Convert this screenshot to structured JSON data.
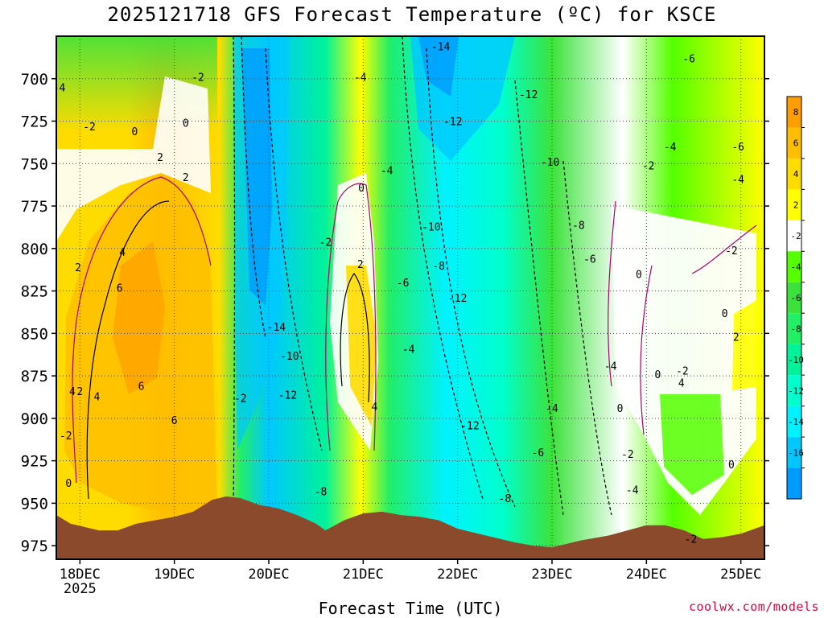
{
  "chart_data": {
    "type": "heatmap",
    "title": "2025121718 GFS Forecast Temperature (ºC) for KSCE",
    "xlabel": "Forecast Time (UTC)",
    "ylabel": "",
    "y_axis": {
      "ticks": [
        700,
        725,
        750,
        775,
        800,
        825,
        850,
        875,
        900,
        925,
        950,
        975
      ],
      "range": [
        675,
        983
      ],
      "inverted": true
    },
    "x_axis": {
      "ticks": [
        "18DEC",
        "19DEC",
        "20DEC",
        "21DEC",
        "22DEC",
        "23DEC",
        "24DEC",
        "25DEC"
      ],
      "tick_values": [
        1.0,
        2.0,
        3.0,
        4.0,
        5.0,
        6.0,
        7.0,
        8.0
      ],
      "year_label": "2025",
      "range": [
        0.75,
        8.25
      ]
    },
    "colorbar": {
      "labels": [
        "8",
        "6",
        "4",
        "2",
        "-2",
        "-4",
        "-6",
        "-8",
        "-10",
        "-12",
        "-14",
        "-16"
      ],
      "colors": [
        "#ff9e00",
        "#ffbe00",
        "#ffdc00",
        "#ffff00",
        "#ffffff",
        "#55ff00",
        "#3ce23c",
        "#22ee66",
        "#00f29a",
        "#00ffcc",
        "#00f2ff",
        "#00c8ff",
        "#009bff"
      ]
    },
    "grid": true,
    "contour_labels": [
      {
        "t": 0.78,
        "p": 705,
        "v": "-4"
      },
      {
        "t": 1.1,
        "p": 728,
        "v": "-2"
      },
      {
        "t": 1.58,
        "p": 731,
        "v": "0"
      },
      {
        "t": 1.85,
        "p": 746,
        "v": "2"
      },
      {
        "t": 2.25,
        "p": 699,
        "v": "-2"
      },
      {
        "t": 2.12,
        "p": 726,
        "v": "0"
      },
      {
        "t": 2.12,
        "p": 758,
        "v": "2"
      },
      {
        "t": 0.98,
        "p": 811,
        "v": "2"
      },
      {
        "t": 1.45,
        "p": 802,
        "v": "4"
      },
      {
        "t": 1.42,
        "p": 823,
        "v": "6"
      },
      {
        "t": 1.65,
        "p": 881,
        "v": "6"
      },
      {
        "t": 2.0,
        "p": 901,
        "v": "6"
      },
      {
        "t": 0.92,
        "p": 884,
        "v": "4"
      },
      {
        "t": 1.0,
        "p": 884,
        "v": "2"
      },
      {
        "t": 1.18,
        "p": 887,
        "v": "4"
      },
      {
        "t": 0.85,
        "p": 910,
        "v": "-2"
      },
      {
        "t": 0.88,
        "p": 938,
        "v": "0"
      },
      {
        "t": 2.7,
        "p": 888,
        "v": "-2"
      },
      {
        "t": 3.08,
        "p": 846,
        "v": "-14"
      },
      {
        "t": 3.22,
        "p": 863,
        "v": "-10"
      },
      {
        "t": 3.2,
        "p": 886,
        "v": "-12"
      },
      {
        "t": 3.55,
        "p": 943,
        "v": "-8"
      },
      {
        "t": 3.6,
        "p": 796,
        "v": "-2"
      },
      {
        "t": 3.98,
        "p": 764,
        "v": "0"
      },
      {
        "t": 3.97,
        "p": 809,
        "v": "2"
      },
      {
        "t": 4.12,
        "p": 893,
        "v": "4"
      },
      {
        "t": 4.25,
        "p": 754,
        "v": "-4"
      },
      {
        "t": 3.97,
        "p": 699,
        "v": "-4"
      },
      {
        "t": 4.42,
        "p": 820,
        "v": "-6"
      },
      {
        "t": 4.48,
        "p": 859,
        "v": "-4"
      },
      {
        "t": 4.72,
        "p": 787,
        "v": "-10"
      },
      {
        "t": 4.8,
        "p": 810,
        "v": "-8"
      },
      {
        "t": 4.82,
        "p": 681,
        "v": "-14"
      },
      {
        "t": 4.95,
        "p": 725,
        "v": "-12"
      },
      {
        "t": 5.0,
        "p": 829,
        "v": "-12"
      },
      {
        "t": 5.13,
        "p": 904,
        "v": "-12"
      },
      {
        "t": 5.5,
        "p": 947,
        "v": "-8"
      },
      {
        "t": 5.75,
        "p": 709,
        "v": "-12"
      },
      {
        "t": 5.98,
        "p": 749,
        "v": "-10"
      },
      {
        "t": 6.28,
        "p": 786,
        "v": "-8"
      },
      {
        "t": 6.4,
        "p": 806,
        "v": "-6"
      },
      {
        "t": 5.85,
        "p": 920,
        "v": "-6"
      },
      {
        "t": 6.0,
        "p": 894,
        "v": "-4"
      },
      {
        "t": 6.62,
        "p": 869,
        "v": "-4"
      },
      {
        "t": 6.8,
        "p": 921,
        "v": "-2"
      },
      {
        "t": 6.85,
        "p": 942,
        "v": "-4"
      },
      {
        "t": 6.72,
        "p": 894,
        "v": "0"
      },
      {
        "t": 6.92,
        "p": 815,
        "v": "0"
      },
      {
        "t": 7.02,
        "p": 751,
        "v": "-2"
      },
      {
        "t": 7.25,
        "p": 740,
        "v": "-4"
      },
      {
        "t": 7.12,
        "p": 874,
        "v": "0"
      },
      {
        "t": 7.38,
        "p": 872,
        "v": "-2"
      },
      {
        "t": 7.37,
        "p": 879,
        "v": "4"
      },
      {
        "t": 7.45,
        "p": 688,
        "v": "-6"
      },
      {
        "t": 7.97,
        "p": 740,
        "v": "-6"
      },
      {
        "t": 7.97,
        "p": 759,
        "v": "-4"
      },
      {
        "t": 7.9,
        "p": 801,
        "v": "-2"
      },
      {
        "t": 7.83,
        "p": 838,
        "v": "0"
      },
      {
        "t": 7.95,
        "p": 852,
        "v": "2"
      },
      {
        "t": 7.9,
        "p": 927,
        "v": "0"
      },
      {
        "t": 7.47,
        "p": 971,
        "v": "-2"
      }
    ],
    "terrain_color": "#8b4a2b",
    "terrain_surface_pressure": [
      {
        "t": 0.75,
        "p": 957
      },
      {
        "t": 0.9,
        "p": 962
      },
      {
        "t": 1.2,
        "p": 966
      },
      {
        "t": 1.4,
        "p": 966
      },
      {
        "t": 1.6,
        "p": 962
      },
      {
        "t": 1.8,
        "p": 960
      },
      {
        "t": 2.0,
        "p": 958
      },
      {
        "t": 2.2,
        "p": 955
      },
      {
        "t": 2.4,
        "p": 948
      },
      {
        "t": 2.55,
        "p": 946
      },
      {
        "t": 2.7,
        "p": 947
      },
      {
        "t": 2.9,
        "p": 951
      },
      {
        "t": 3.1,
        "p": 953
      },
      {
        "t": 3.3,
        "p": 957
      },
      {
        "t": 3.5,
        "p": 962
      },
      {
        "t": 3.6,
        "p": 966
      },
      {
        "t": 3.8,
        "p": 960
      },
      {
        "t": 4.0,
        "p": 956
      },
      {
        "t": 4.2,
        "p": 955
      },
      {
        "t": 4.4,
        "p": 957
      },
      {
        "t": 4.6,
        "p": 958
      },
      {
        "t": 4.8,
        "p": 960
      },
      {
        "t": 5.0,
        "p": 965
      },
      {
        "t": 5.3,
        "p": 969
      },
      {
        "t": 5.6,
        "p": 973
      },
      {
        "t": 5.8,
        "p": 975
      },
      {
        "t": 6.0,
        "p": 976
      },
      {
        "t": 6.3,
        "p": 972
      },
      {
        "t": 6.6,
        "p": 969
      },
      {
        "t": 6.8,
        "p": 966
      },
      {
        "t": 7.0,
        "p": 963
      },
      {
        "t": 7.2,
        "p": 963
      },
      {
        "t": 7.4,
        "p": 966
      },
      {
        "t": 7.6,
        "p": 971
      },
      {
        "t": 7.8,
        "p": 970
      },
      {
        "t": 8.0,
        "p": 968
      },
      {
        "t": 8.25,
        "p": 963
      }
    ]
  },
  "credit": "coolwx.com/models"
}
